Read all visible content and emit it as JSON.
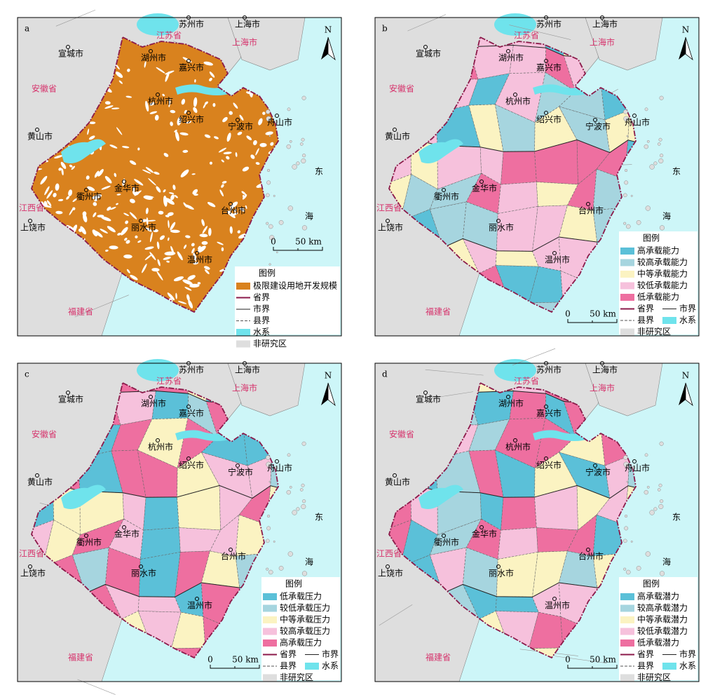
{
  "map_labels": [
    "苏州市",
    "上海市",
    "江苏省",
    "上海市",
    "宣城市",
    "湖州市",
    "嘉兴市",
    "安徽省",
    "杭州市",
    "绍兴市",
    "宁波市",
    "舟山市",
    "黄山市",
    "东",
    "海",
    "衢州市",
    "金华市",
    "江西省",
    "上饶市",
    "丽水市",
    "台州市",
    "温州市",
    "福建省"
  ],
  "north": "N",
  "scale_bar": {
    "start": "0",
    "end": "50 km"
  },
  "panels": [
    {
      "letter": "a",
      "legend": {
        "title": "图例",
        "items": [
          {
            "name": "极限建设用地开发规模",
            "color": "#d9821e",
            "symbol": "fill"
          },
          {
            "name": "省界",
            "color": "#8b1a4a",
            "symbol": "line"
          },
          {
            "name": "市界",
            "color": "#222222",
            "symbol": "line"
          },
          {
            "name": "县界",
            "color": "#555555",
            "symbol": "dash"
          },
          {
            "name": "水系",
            "color": "#6fe3ec",
            "symbol": "fill"
          },
          {
            "name": "非研究区",
            "color": "#dedede",
            "symbol": "fill"
          }
        ]
      }
    },
    {
      "letter": "b",
      "legend": {
        "title": "图例",
        "items": [
          {
            "name": "高承载能力",
            "color": "#5bc0d8",
            "symbol": "fill"
          },
          {
            "name": "较高承载能力",
            "color": "#a6d5df",
            "symbol": "fill"
          },
          {
            "name": "中等承载能力",
            "color": "#fbf3c2",
            "symbol": "fill"
          },
          {
            "name": "较低承载能力",
            "color": "#f6c1dc",
            "symbol": "fill"
          },
          {
            "name": "低承载能力",
            "color": "#ee6fa0",
            "symbol": "fill"
          },
          {
            "name": "省界",
            "color": "#8b1a4a",
            "symbol": "line"
          },
          {
            "name": "市界",
            "color": "#222222",
            "symbol": "line"
          },
          {
            "name": "县界",
            "color": "#555555",
            "symbol": "dash"
          },
          {
            "name": "水系",
            "color": "#6fe3ec",
            "symbol": "fill"
          },
          {
            "name": "非研究区",
            "color": "#dedede",
            "symbol": "fill"
          }
        ]
      }
    },
    {
      "letter": "c",
      "legend": {
        "title": "图例",
        "items": [
          {
            "name": "低承载压力",
            "color": "#5bc0d8",
            "symbol": "fill"
          },
          {
            "name": "较低承载压力",
            "color": "#a6d5df",
            "symbol": "fill"
          },
          {
            "name": "中等承载压力",
            "color": "#fbf3c2",
            "symbol": "fill"
          },
          {
            "name": "较高承载压力",
            "color": "#f6c1dc",
            "symbol": "fill"
          },
          {
            "name": "高承载压力",
            "color": "#ee6fa0",
            "symbol": "fill"
          },
          {
            "name": "省界",
            "color": "#8b1a4a",
            "symbol": "line"
          },
          {
            "name": "市界",
            "color": "#222222",
            "symbol": "line"
          },
          {
            "name": "县界",
            "color": "#555555",
            "symbol": "dash"
          },
          {
            "name": "水系",
            "color": "#6fe3ec",
            "symbol": "fill"
          },
          {
            "name": "非研究区",
            "color": "#dedede",
            "symbol": "fill"
          }
        ]
      }
    },
    {
      "letter": "d",
      "legend": {
        "title": "图例",
        "items": [
          {
            "name": "高承载潜力",
            "color": "#5bc0d8",
            "symbol": "fill"
          },
          {
            "name": "较高承载潜力",
            "color": "#a6d5df",
            "symbol": "fill"
          },
          {
            "name": "中等承载潜力",
            "color": "#fbf3c2",
            "symbol": "fill"
          },
          {
            "name": "较低承载潜力",
            "color": "#f6c1dc",
            "symbol": "fill"
          },
          {
            "name": "低承载潜力",
            "color": "#ee6fa0",
            "symbol": "fill"
          },
          {
            "name": "省界",
            "color": "#8b1a4a",
            "symbol": "line"
          },
          {
            "name": "市界",
            "color": "#222222",
            "symbol": "line"
          },
          {
            "name": "县界",
            "color": "#555555",
            "symbol": "dash"
          },
          {
            "name": "水系",
            "color": "#6fe3ec",
            "symbol": "fill"
          },
          {
            "name": "非研究区",
            "color": "#dedede",
            "symbol": "fill"
          }
        ]
      }
    }
  ]
}
